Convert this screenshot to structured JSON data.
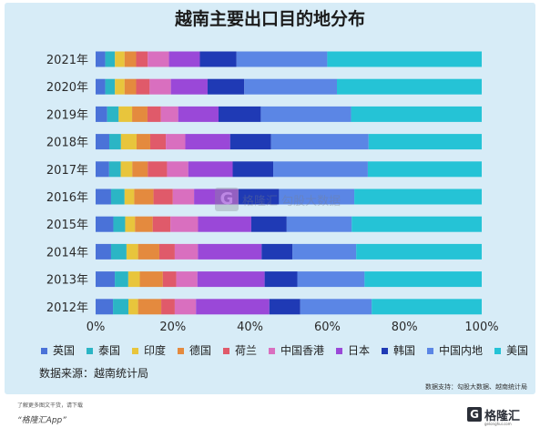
{
  "title": "越南主要出口目的地分布",
  "source": "数据来源：越南统计局",
  "support": "数据支持：勾股大数据、越南统计局",
  "footer": {
    "small_text": "了解更多图文干货，请下载",
    "app_text": "“格隆汇App”",
    "logo_mark": "G",
    "logo_text": "格隆汇",
    "logo_sub": "gelonghui.com"
  },
  "watermark": {
    "mark": "G",
    "text": "格隆汇 勾股大数据"
  },
  "chart_data": {
    "type": "bar",
    "orientation": "horizontal",
    "stacked": true,
    "normalized": true,
    "categories": [
      "2021年",
      "2020年",
      "2019年",
      "2018年",
      "2017年",
      "2016年",
      "2015年",
      "2014年",
      "2013年",
      "2012年"
    ],
    "xlim": [
      0,
      100
    ],
    "xticks": [
      "0%",
      "20%",
      "40%",
      "60%",
      "80%",
      "100%"
    ],
    "legend_position": "bottom",
    "grid": false,
    "series": [
      {
        "name": "英国",
        "color": "#4a72d8",
        "values": [
          2.5,
          2.5,
          3.0,
          3.5,
          3.5,
          4.0,
          4.5,
          4.0,
          5.0,
          4.5
        ]
      },
      {
        "name": "泰国",
        "color": "#2bb5c5",
        "values": [
          2.5,
          2.5,
          3.0,
          3.0,
          3.0,
          3.5,
          3.0,
          4.0,
          3.5,
          4.0
        ]
      },
      {
        "name": "印度",
        "color": "#e8c53c",
        "values": [
          2.5,
          2.5,
          3.5,
          4.0,
          3.0,
          2.5,
          2.5,
          3.0,
          3.0,
          2.5
        ]
      },
      {
        "name": "德国",
        "color": "#e48a3e",
        "values": [
          3.0,
          3.0,
          4.0,
          3.5,
          4.0,
          5.0,
          4.5,
          5.5,
          6.0,
          6.0
        ]
      },
      {
        "name": "荷兰",
        "color": "#e05a6a",
        "values": [
          3.0,
          3.5,
          3.5,
          4.0,
          5.0,
          5.0,
          4.5,
          4.0,
          3.5,
          3.5
        ]
      },
      {
        "name": "中国香港",
        "color": "#d96fbf",
        "values": [
          5.5,
          5.5,
          4.5,
          5.0,
          5.5,
          5.5,
          7.0,
          6.0,
          5.5,
          5.5
        ]
      },
      {
        "name": "日本",
        "color": "#9a48d8",
        "values": [
          8.0,
          9.5,
          10.5,
          11.5,
          11.5,
          11.5,
          13.5,
          16.5,
          17.5,
          19.0
        ]
      },
      {
        "name": "韩国",
        "color": "#1f3ab5",
        "values": [
          9.5,
          9.5,
          11.0,
          10.5,
          10.5,
          10.5,
          9.0,
          8.0,
          8.5,
          8.0
        ]
      },
      {
        "name": "中国内地",
        "color": "#5b86e5",
        "values": [
          23.5,
          24.0,
          23.5,
          25.0,
          24.5,
          19.5,
          16.5,
          16.5,
          17.5,
          18.5
        ]
      },
      {
        "name": "美国",
        "color": "#25c3d6",
        "values": [
          40.0,
          37.5,
          34.0,
          29.0,
          29.5,
          33.0,
          33.0,
          32.5,
          30.5,
          28.5
        ]
      }
    ]
  }
}
